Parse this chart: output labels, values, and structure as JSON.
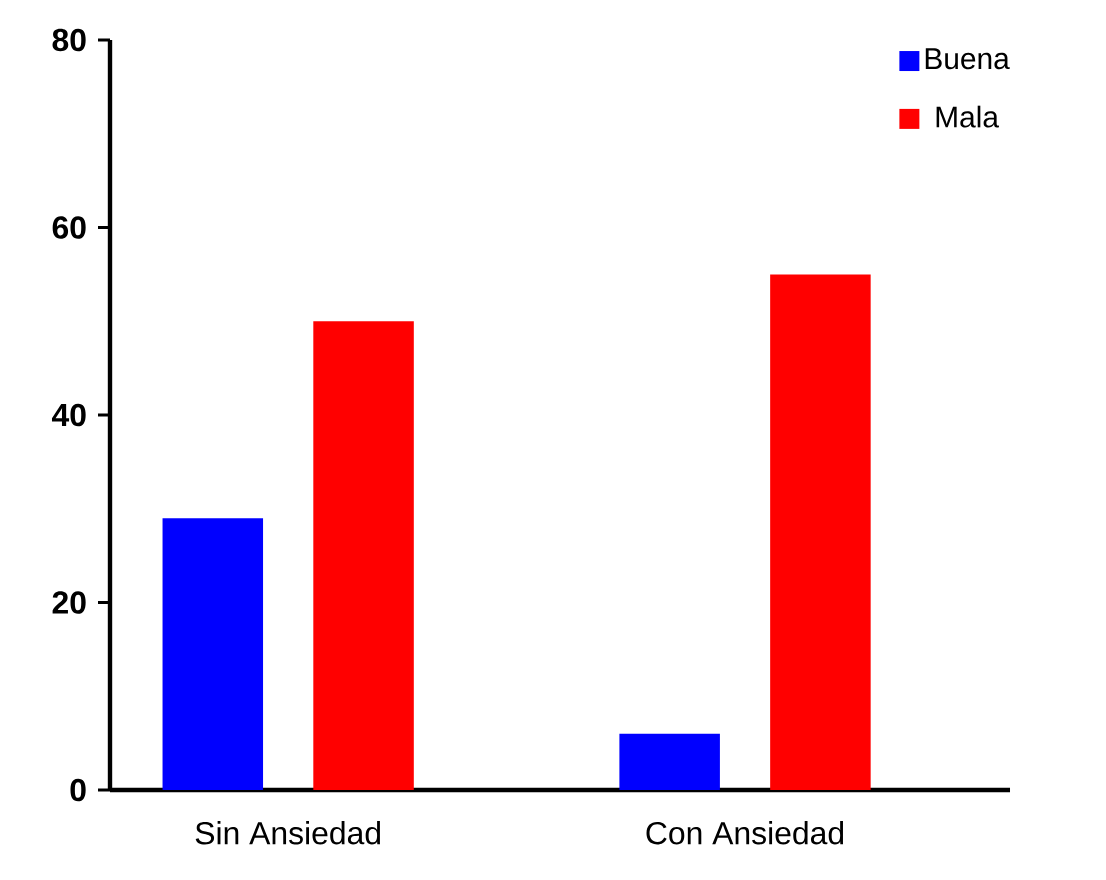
{
  "chart_data": {
    "type": "bar",
    "categories": [
      "Sin Ansiedad",
      "Con Ansiedad"
    ],
    "series": [
      {
        "name": "Buena",
        "color": "#0000ff",
        "values": [
          29,
          6
        ]
      },
      {
        "name": "Mala",
        "color": "#ff0000",
        "values": [
          50,
          55
        ]
      }
    ],
    "ylim": [
      0,
      80
    ],
    "yticks": [
      0,
      20,
      40,
      60,
      80
    ],
    "legend": "top right",
    "grid": false
  }
}
